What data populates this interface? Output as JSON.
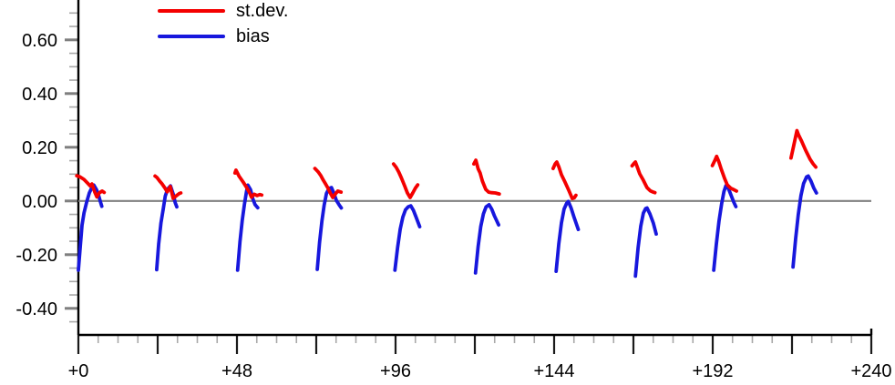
{
  "legend": {
    "items": [
      {
        "label": "st.dev.",
        "color": "#f40000"
      },
      {
        "label": "bias",
        "color": "#1717dd"
      }
    ]
  },
  "chart_data": {
    "type": "line",
    "title": "",
    "xlabel": "",
    "ylabel": "",
    "legend_position": "top-left-inside",
    "grid": false,
    "zero_line": true,
    "x_axis": {
      "min": 0,
      "max": 240,
      "major_tick_step": 24,
      "minor_tick_step": 6,
      "labels": [
        {
          "value": 0,
          "label": "+0"
        },
        {
          "value": 48,
          "label": "+48"
        },
        {
          "value": 96,
          "label": "+96"
        },
        {
          "value": 144,
          "label": "+144"
        },
        {
          "value": 192,
          "label": "+192"
        },
        {
          "value": 240,
          "label": "+240"
        }
      ]
    },
    "y_axis": {
      "min": -0.5,
      "max": 0.75,
      "major_tick_step": 0.2,
      "minor_tick_step": 0.05,
      "labels": [
        {
          "value": 0.6,
          "label": "0.60"
        },
        {
          "value": 0.4,
          "label": "0.40"
        },
        {
          "value": 0.2,
          "label": "0.20"
        },
        {
          "value": 0.0,
          "label": "0.00"
        },
        {
          "value": -0.2,
          "label": "-0.20"
        },
        {
          "value": -0.4,
          "label": "-0.40"
        }
      ]
    },
    "colors": {
      "stdev": "#f40000",
      "bias": "#1717dd",
      "axis": "#000000",
      "zero_line": "#808080",
      "y_major_tick": "#7f7f7f",
      "y_minor_tick": "#a8a8a8",
      "x_major_tick": "#1a1a1a",
      "x_minor_tick": "#a8a8a8",
      "text": "#000000"
    },
    "series_names": [
      "st.dev.",
      "bias"
    ],
    "segments": [
      {
        "lead": 0,
        "stdev": [
          [
            -0.5,
            0.094
          ],
          [
            0.5,
            0.09
          ],
          [
            1.7,
            0.08
          ],
          [
            2.8,
            0.066
          ],
          [
            3.6,
            0.056
          ],
          [
            4.1,
            0.063
          ],
          [
            5.0,
            0.032
          ],
          [
            5.6,
            0.015
          ],
          [
            6.3,
            0.03
          ],
          [
            7.2,
            0.037
          ],
          [
            7.8,
            0.032
          ]
        ],
        "bias": [
          [
            0.0,
            -0.258
          ],
          [
            0.6,
            -0.165
          ],
          [
            1.1,
            -0.09
          ],
          [
            1.7,
            -0.044
          ],
          [
            2.5,
            -0.004
          ],
          [
            3.3,
            0.03
          ],
          [
            4.1,
            0.051
          ],
          [
            4.7,
            0.059
          ],
          [
            5.5,
            0.042
          ],
          [
            6.1,
            0.022
          ],
          [
            6.6,
            0.0
          ],
          [
            7.1,
            -0.02
          ]
        ]
      },
      {
        "lead": 24,
        "stdev": [
          [
            -0.8,
            0.093
          ],
          [
            -0.2,
            0.087
          ],
          [
            0.6,
            0.074
          ],
          [
            1.3,
            0.064
          ],
          [
            2.2,
            0.048
          ],
          [
            2.9,
            0.034
          ],
          [
            3.8,
            0.054
          ],
          [
            4.7,
            0.01
          ],
          [
            5.7,
            0.02
          ],
          [
            6.6,
            0.028
          ],
          [
            7.0,
            0.03
          ]
        ],
        "bias": [
          [
            -0.3,
            -0.256
          ],
          [
            0.3,
            -0.16
          ],
          [
            1.0,
            -0.082
          ],
          [
            1.7,
            -0.028
          ],
          [
            2.3,
            0.018
          ],
          [
            3.0,
            0.044
          ],
          [
            3.9,
            0.056
          ],
          [
            4.7,
            0.026
          ],
          [
            5.3,
            -0.006
          ],
          [
            5.8,
            -0.022
          ]
        ]
      },
      {
        "lead": 48,
        "stdev": [
          [
            -0.6,
            0.104
          ],
          [
            -0.3,
            0.115
          ],
          [
            0.6,
            0.093
          ],
          [
            1.9,
            0.07
          ],
          [
            2.8,
            0.053
          ],
          [
            3.8,
            0.031
          ],
          [
            4.4,
            0.014
          ],
          [
            5.2,
            0.025
          ],
          [
            6.1,
            0.02
          ],
          [
            6.9,
            0.024
          ],
          [
            7.5,
            0.022
          ]
        ],
        "bias": [
          [
            0.2,
            -0.258
          ],
          [
            0.9,
            -0.152
          ],
          [
            1.6,
            -0.072
          ],
          [
            2.3,
            -0.01
          ],
          [
            2.9,
            0.036
          ],
          [
            3.3,
            0.059
          ],
          [
            4.1,
            0.042
          ],
          [
            4.8,
            0.008
          ],
          [
            5.5,
            -0.014
          ],
          [
            6.3,
            -0.025
          ]
        ]
      },
      {
        "lead": 72,
        "stdev": [
          [
            -0.4,
            0.121
          ],
          [
            0.6,
            0.108
          ],
          [
            1.4,
            0.094
          ],
          [
            2.1,
            0.078
          ],
          [
            2.8,
            0.064
          ],
          [
            3.6,
            0.047
          ],
          [
            4.3,
            0.028
          ],
          [
            5.0,
            0.013
          ],
          [
            5.8,
            0.026
          ],
          [
            6.5,
            0.037
          ],
          [
            7.5,
            0.033
          ]
        ],
        "bias": [
          [
            0.3,
            -0.255
          ],
          [
            1.0,
            -0.155
          ],
          [
            1.7,
            -0.075
          ],
          [
            2.4,
            -0.015
          ],
          [
            3.1,
            0.028
          ],
          [
            3.9,
            0.047
          ],
          [
            4.6,
            0.05
          ],
          [
            5.3,
            0.03
          ],
          [
            6.1,
            0.002
          ],
          [
            6.9,
            -0.014
          ],
          [
            7.6,
            -0.026
          ]
        ]
      },
      {
        "lead": 96,
        "stdev": [
          [
            -0.6,
            0.138
          ],
          [
            0.2,
            0.125
          ],
          [
            1.0,
            0.107
          ],
          [
            1.8,
            0.085
          ],
          [
            2.8,
            0.055
          ],
          [
            3.6,
            0.03
          ],
          [
            4.4,
            0.013
          ],
          [
            5.2,
            0.03
          ],
          [
            6.0,
            0.048
          ],
          [
            6.7,
            0.06
          ]
        ],
        "bias": [
          [
            -0.2,
            -0.258
          ],
          [
            0.6,
            -0.175
          ],
          [
            1.4,
            -0.105
          ],
          [
            2.2,
            -0.06
          ],
          [
            3.0,
            -0.033
          ],
          [
            3.8,
            -0.022
          ],
          [
            4.6,
            -0.018
          ],
          [
            5.4,
            -0.035
          ],
          [
            6.2,
            -0.06
          ],
          [
            7.3,
            -0.096
          ]
        ]
      },
      {
        "lead": 120,
        "stdev": [
          [
            -0.3,
            0.138
          ],
          [
            0.3,
            0.152
          ],
          [
            1.0,
            0.12
          ],
          [
            1.6,
            0.104
          ],
          [
            2.3,
            0.074
          ],
          [
            3.3,
            0.043
          ],
          [
            4.2,
            0.033
          ],
          [
            5.1,
            0.031
          ],
          [
            6.2,
            0.03
          ],
          [
            7.4,
            0.026
          ]
        ],
        "bias": [
          [
            0.2,
            -0.268
          ],
          [
            1.0,
            -0.17
          ],
          [
            1.8,
            -0.095
          ],
          [
            2.6,
            -0.048
          ],
          [
            3.4,
            -0.022
          ],
          [
            4.3,
            -0.014
          ],
          [
            5.1,
            -0.03
          ],
          [
            5.9,
            -0.055
          ],
          [
            7.2,
            -0.089
          ]
        ]
      },
      {
        "lead": 144,
        "stdev": [
          [
            -0.3,
            0.121
          ],
          [
            0.3,
            0.138
          ],
          [
            0.8,
            0.145
          ],
          [
            1.5,
            0.125
          ],
          [
            2.2,
            0.098
          ],
          [
            3.3,
            0.07
          ],
          [
            4.4,
            0.04
          ],
          [
            5.5,
            0.009
          ],
          [
            6.1,
            0.012
          ],
          [
            6.6,
            0.021
          ]
        ],
        "bias": [
          [
            0.6,
            -0.262
          ],
          [
            1.4,
            -0.16
          ],
          [
            2.2,
            -0.082
          ],
          [
            3.0,
            -0.03
          ],
          [
            3.8,
            -0.008
          ],
          [
            4.3,
            -0.002
          ],
          [
            5.1,
            -0.025
          ],
          [
            6.0,
            -0.06
          ],
          [
            7.3,
            -0.106
          ]
        ]
      },
      {
        "lead": 168,
        "stdev": [
          [
            -0.4,
            0.131
          ],
          [
            0.2,
            0.14
          ],
          [
            0.6,
            0.145
          ],
          [
            1.3,
            0.122
          ],
          [
            1.9,
            0.101
          ],
          [
            3.0,
            0.077
          ],
          [
            4.1,
            0.05
          ],
          [
            5.1,
            0.038
          ],
          [
            6.0,
            0.033
          ],
          [
            6.5,
            0.031
          ]
        ],
        "bias": [
          [
            0.6,
            -0.28
          ],
          [
            1.4,
            -0.175
          ],
          [
            2.2,
            -0.095
          ],
          [
            3.0,
            -0.045
          ],
          [
            3.7,
            -0.028
          ],
          [
            4.1,
            -0.026
          ],
          [
            5.0,
            -0.048
          ],
          [
            6.0,
            -0.082
          ],
          [
            6.9,
            -0.123
          ]
        ]
      },
      {
        "lead": 192,
        "stdev": [
          [
            -0.1,
            0.132
          ],
          [
            0.6,
            0.15
          ],
          [
            1.2,
            0.166
          ],
          [
            1.8,
            0.148
          ],
          [
            2.5,
            0.121
          ],
          [
            3.6,
            0.084
          ],
          [
            4.4,
            0.06
          ],
          [
            5.5,
            0.047
          ],
          [
            6.4,
            0.042
          ],
          [
            7.2,
            0.037
          ]
        ],
        "bias": [
          [
            0.3,
            -0.258
          ],
          [
            1.1,
            -0.16
          ],
          [
            1.9,
            -0.075
          ],
          [
            2.7,
            -0.01
          ],
          [
            3.4,
            0.035
          ],
          [
            4.0,
            0.057
          ],
          [
            4.8,
            0.045
          ],
          [
            5.6,
            0.02
          ],
          [
            6.4,
            -0.005
          ],
          [
            7.0,
            -0.021
          ]
        ]
      },
      {
        "lead": 216,
        "stdev": [
          [
            -0.3,
            0.16
          ],
          [
            0.5,
            0.205
          ],
          [
            1.1,
            0.24
          ],
          [
            1.5,
            0.262
          ],
          [
            2.0,
            0.245
          ],
          [
            2.9,
            0.223
          ],
          [
            4.1,
            0.189
          ],
          [
            5.5,
            0.155
          ],
          [
            6.4,
            0.138
          ],
          [
            7.2,
            0.126
          ]
        ],
        "bias": [
          [
            0.3,
            -0.246
          ],
          [
            1.1,
            -0.14
          ],
          [
            1.9,
            -0.05
          ],
          [
            2.7,
            0.02
          ],
          [
            3.5,
            0.065
          ],
          [
            4.4,
            0.09
          ],
          [
            4.9,
            0.093
          ],
          [
            5.7,
            0.075
          ],
          [
            6.6,
            0.048
          ],
          [
            7.4,
            0.03
          ]
        ]
      }
    ]
  }
}
